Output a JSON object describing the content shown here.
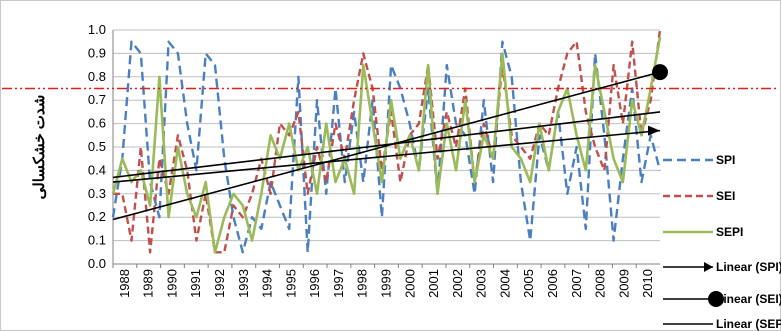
{
  "chart_data": {
    "type": "line",
    "ylabel": "شدت خشکسالی",
    "xlabel": "",
    "title": "",
    "ylim": [
      0,
      1
    ],
    "y_ticks": [
      "0.0",
      "0.1",
      "0.2",
      "0.3",
      "0.4",
      "0.5",
      "0.6",
      "0.7",
      "0.8",
      "0.9",
      "1.0"
    ],
    "x_ticks": [
      "1988",
      "1989",
      "1990",
      "1991",
      "1992",
      "1993",
      "1994",
      "1995",
      "1996",
      "1997",
      "1998",
      "1999",
      "2000",
      "2001",
      "2002",
      "2003",
      "2004",
      "2005",
      "2006",
      "2007",
      "2008",
      "2009",
      "2010"
    ],
    "threshold": {
      "value": 0.75,
      "color": "#e0201b"
    },
    "grid": "horizontal",
    "legend_position": "right",
    "series": [
      {
        "name": "SPI",
        "color": "#4a7fc1",
        "style": "dashed",
        "values": [
          0.2,
          0.45,
          0.95,
          0.9,
          0.35,
          0.2,
          0.95,
          0.9,
          0.6,
          0.4,
          0.9,
          0.85,
          0.45,
          0.2,
          0.05,
          0.2,
          0.15,
          0.35,
          0.25,
          0.15,
          0.8,
          0.05,
          0.7,
          0.3,
          0.75,
          0.35,
          0.65,
          0.35,
          0.7,
          0.2,
          0.85,
          0.75,
          0.6,
          0.4,
          0.75,
          0.3,
          0.85,
          0.6,
          0.55,
          0.3,
          0.7,
          0.35,
          0.95,
          0.8,
          0.35,
          0.1,
          0.55,
          0.4,
          0.65,
          0.3,
          0.5,
          0.15,
          0.9,
          0.55,
          0.1,
          0.45,
          0.75,
          0.35,
          0.55,
          0.4
        ]
      },
      {
        "name": "SEI",
        "color": "#c0504d",
        "style": "dashed",
        "values": [
          0.3,
          0.3,
          0.1,
          0.5,
          0.05,
          0.45,
          0.3,
          0.55,
          0.4,
          0.1,
          0.3,
          0.05,
          0.05,
          0.25,
          0.2,
          0.3,
          0.45,
          0.3,
          0.6,
          0.55,
          0.65,
          0.3,
          0.5,
          0.35,
          0.6,
          0.45,
          0.7,
          0.9,
          0.75,
          0.4,
          0.65,
          0.35,
          0.55,
          0.6,
          0.85,
          0.45,
          0.65,
          0.5,
          0.75,
          0.35,
          0.6,
          0.45,
          0.85,
          0.55,
          0.5,
          0.45,
          0.6,
          0.55,
          0.75,
          0.9,
          0.95,
          0.65,
          0.5,
          0.4,
          0.85,
          0.6,
          0.95,
          0.55,
          0.7,
          1.0
        ]
      },
      {
        "name": "SEPI",
        "color": "#9bbb59",
        "style": "solid",
        "values": [
          0.3,
          0.45,
          0.35,
          0.4,
          0.25,
          0.8,
          0.2,
          0.5,
          0.3,
          0.2,
          0.35,
          0.05,
          0.2,
          0.3,
          0.25,
          0.1,
          0.3,
          0.55,
          0.45,
          0.6,
          0.4,
          0.5,
          0.3,
          0.6,
          0.35,
          0.45,
          0.3,
          0.85,
          0.6,
          0.35,
          0.7,
          0.45,
          0.55,
          0.4,
          0.85,
          0.3,
          0.6,
          0.4,
          0.7,
          0.35,
          0.55,
          0.45,
          0.9,
          0.5,
          0.45,
          0.35,
          0.6,
          0.4,
          0.65,
          0.75,
          0.55,
          0.4,
          0.85,
          0.65,
          0.45,
          0.35,
          0.7,
          0.55,
          0.75,
          0.97
        ]
      },
      {
        "name": "Linear (SPI)",
        "color": "#000000",
        "style": "trend",
        "marker": "arrow",
        "start": 0.35,
        "end": 0.57
      },
      {
        "name": "Linear (SEI)",
        "color": "#000000",
        "style": "trend",
        "marker": "dot",
        "start": 0.19,
        "end": 0.82
      },
      {
        "name": "Linear (SEP",
        "color": "#000000",
        "style": "trend",
        "marker": "none",
        "start": 0.37,
        "end": 0.65
      }
    ]
  }
}
